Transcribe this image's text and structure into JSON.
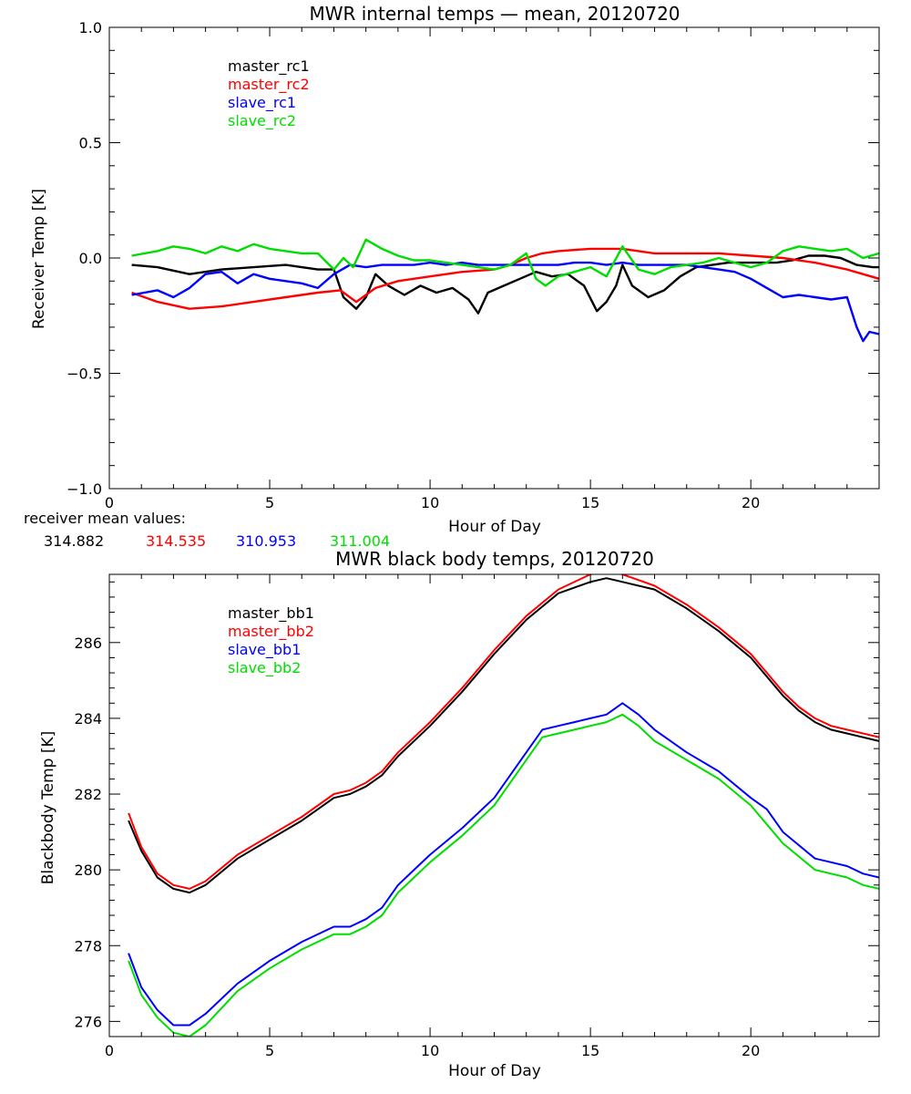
{
  "receiver_mean": {
    "label": "receiver mean values:",
    "values": [
      "314.882",
      "314.535",
      "310.953",
      "311.004"
    ],
    "colors": [
      "#000000",
      "#ff0000",
      "#0000ff",
      "#00dd00"
    ]
  },
  "chart_data": [
    {
      "type": "line",
      "title": "MWR internal temps — mean, 20120720",
      "xlabel": "Hour of Day",
      "ylabel": "Receiver Temp [K]",
      "xlim": [
        0,
        24
      ],
      "ylim": [
        -1.0,
        1.0
      ],
      "xticks": [
        0,
        5,
        10,
        15,
        20
      ],
      "xtick_labels": [
        "0",
        "5",
        "10",
        "15",
        "20"
      ],
      "yticks": [
        -1.0,
        -0.5,
        0.0,
        0.5,
        1.0
      ],
      "ytick_labels": [
        "−1.0",
        "−0.5",
        "0.0",
        "0.5",
        "1.0"
      ],
      "legend_position": "top-left",
      "grid": false,
      "series": [
        {
          "name": "master_rc1",
          "color": "#000000",
          "x": [
            0.7,
            1.5,
            2.5,
            3.5,
            4.5,
            5.5,
            6.5,
            7.0,
            7.3,
            7.7,
            8.0,
            8.3,
            8.7,
            9.2,
            9.7,
            10.2,
            10.7,
            11.2,
            11.5,
            11.8,
            12.3,
            12.8,
            13.3,
            13.8,
            14.3,
            14.8,
            15.2,
            15.5,
            15.8,
            16.0,
            16.3,
            16.8,
            17.3,
            17.8,
            18.3,
            18.8,
            19.3,
            19.8,
            20.3,
            20.8,
            21.3,
            21.8,
            22.3,
            22.8,
            23.3,
            23.8,
            24.0
          ],
          "y": [
            -0.03,
            -0.04,
            -0.07,
            -0.05,
            -0.04,
            -0.03,
            -0.05,
            -0.05,
            -0.17,
            -0.22,
            -0.17,
            -0.07,
            -0.12,
            -0.16,
            -0.12,
            -0.15,
            -0.13,
            -0.18,
            -0.24,
            -0.15,
            -0.12,
            -0.09,
            -0.06,
            -0.08,
            -0.07,
            -0.12,
            -0.23,
            -0.19,
            -0.12,
            -0.03,
            -0.12,
            -0.17,
            -0.14,
            -0.08,
            -0.04,
            -0.03,
            -0.02,
            -0.02,
            -0.02,
            -0.02,
            -0.01,
            0.01,
            0.01,
            0.0,
            -0.03,
            -0.04,
            -0.04
          ]
        },
        {
          "name": "master_rc2",
          "color": "#ff0000",
          "x": [
            0.7,
            1.5,
            2.5,
            3.5,
            4.5,
            5.5,
            6.5,
            7.2,
            7.7,
            8.0,
            8.3,
            9.0,
            10.0,
            11.0,
            12.0,
            12.5,
            13.0,
            13.5,
            14.0,
            15.0,
            16.0,
            17.0,
            18.0,
            19.0,
            20.0,
            21.0,
            22.0,
            23.0,
            23.5,
            24.0
          ],
          "y": [
            -0.15,
            -0.19,
            -0.22,
            -0.21,
            -0.19,
            -0.17,
            -0.15,
            -0.14,
            -0.19,
            -0.16,
            -0.13,
            -0.1,
            -0.08,
            -0.06,
            -0.05,
            -0.03,
            0.0,
            0.02,
            0.03,
            0.04,
            0.04,
            0.02,
            0.02,
            0.02,
            0.01,
            0.0,
            -0.02,
            -0.05,
            -0.07,
            -0.09
          ]
        },
        {
          "name": "slave_rc1",
          "color": "#0000ff",
          "x": [
            0.7,
            1.5,
            2.0,
            2.5,
            3.0,
            3.5,
            4.0,
            4.5,
            5.0,
            5.5,
            6.0,
            6.5,
            7.0,
            7.5,
            8.0,
            8.5,
            9.0,
            9.5,
            10.0,
            10.5,
            11.0,
            11.5,
            12.0,
            12.5,
            13.0,
            13.5,
            14.0,
            14.5,
            15.0,
            15.5,
            16.0,
            16.5,
            17.0,
            17.5,
            18.0,
            18.5,
            19.0,
            19.5,
            20.0,
            20.5,
            21.0,
            21.5,
            22.0,
            22.5,
            23.0,
            23.3,
            23.5,
            23.7,
            24.0
          ],
          "y": [
            -0.16,
            -0.14,
            -0.17,
            -0.13,
            -0.07,
            -0.06,
            -0.11,
            -0.07,
            -0.09,
            -0.1,
            -0.11,
            -0.13,
            -0.07,
            -0.03,
            -0.04,
            -0.03,
            -0.03,
            -0.03,
            -0.02,
            -0.03,
            -0.02,
            -0.03,
            -0.03,
            -0.03,
            -0.03,
            -0.03,
            -0.03,
            -0.02,
            -0.02,
            -0.03,
            -0.02,
            -0.03,
            -0.03,
            -0.03,
            -0.03,
            -0.04,
            -0.05,
            -0.06,
            -0.09,
            -0.13,
            -0.17,
            -0.16,
            -0.17,
            -0.18,
            -0.17,
            -0.3,
            -0.36,
            -0.32,
            -0.33
          ]
        },
        {
          "name": "slave_rc2",
          "color": "#00dd00",
          "x": [
            0.7,
            1.5,
            2.0,
            2.5,
            3.0,
            3.5,
            4.0,
            4.5,
            5.0,
            5.5,
            6.0,
            6.5,
            7.0,
            7.3,
            7.6,
            8.0,
            8.5,
            9.0,
            9.5,
            10.0,
            10.5,
            11.0,
            11.5,
            12.0,
            12.5,
            13.0,
            13.3,
            13.6,
            14.0,
            14.5,
            15.0,
            15.5,
            16.0,
            16.5,
            17.0,
            17.5,
            18.0,
            18.5,
            19.0,
            19.5,
            20.0,
            20.5,
            21.0,
            21.5,
            22.0,
            22.5,
            23.0,
            23.5,
            24.0
          ],
          "y": [
            0.01,
            0.03,
            0.05,
            0.04,
            0.02,
            0.05,
            0.03,
            0.06,
            0.04,
            0.03,
            0.02,
            0.02,
            -0.05,
            0.0,
            -0.04,
            0.08,
            0.04,
            0.01,
            -0.01,
            -0.01,
            -0.02,
            -0.03,
            -0.04,
            -0.05,
            -0.03,
            0.02,
            -0.09,
            -0.12,
            -0.08,
            -0.06,
            -0.04,
            -0.08,
            0.05,
            -0.05,
            -0.07,
            -0.04,
            -0.03,
            -0.02,
            0.0,
            -0.02,
            -0.04,
            -0.02,
            0.03,
            0.05,
            0.04,
            0.03,
            0.04,
            0.0,
            0.02
          ]
        }
      ]
    },
    {
      "type": "line",
      "title": "MWR black body temps, 20120720",
      "xlabel": "Hour of Day",
      "ylabel": "Blackbody Temp [K]",
      "xlim": [
        0,
        24
      ],
      "ylim": [
        275.6,
        287.8
      ],
      "xticks": [
        0,
        5,
        10,
        15,
        20
      ],
      "xtick_labels": [
        "0",
        "5",
        "10",
        "15",
        "20"
      ],
      "yticks": [
        276,
        278,
        280,
        282,
        284,
        286
      ],
      "ytick_labels": [
        "276",
        "278",
        "280",
        "282",
        "284",
        "286"
      ],
      "legend_position": "top-left",
      "grid": false,
      "series": [
        {
          "name": "master_bb1",
          "color": "#000000",
          "x": [
            0.6,
            1.0,
            1.5,
            2.0,
            2.5,
            3.0,
            4.0,
            5.0,
            6.0,
            7.0,
            7.5,
            8.0,
            8.5,
            9.0,
            10.0,
            11.0,
            12.0,
            13.0,
            14.0,
            15.0,
            15.5,
            16.0,
            17.0,
            18.0,
            19.0,
            20.0,
            20.5,
            21.0,
            21.5,
            22.0,
            22.5,
            23.0,
            24.0
          ],
          "y": [
            281.3,
            280.5,
            279.8,
            279.5,
            279.4,
            279.6,
            280.3,
            280.8,
            281.3,
            281.9,
            282.0,
            282.2,
            282.5,
            283.0,
            283.8,
            284.7,
            285.7,
            286.6,
            287.3,
            287.6,
            287.7,
            287.6,
            287.4,
            286.9,
            286.3,
            285.6,
            285.1,
            284.6,
            284.2,
            283.9,
            283.7,
            283.6,
            283.4
          ]
        },
        {
          "name": "master_bb2",
          "color": "#ff0000",
          "x": [
            0.6,
            1.0,
            1.5,
            2.0,
            2.5,
            3.0,
            4.0,
            5.0,
            6.0,
            7.0,
            7.5,
            8.0,
            8.5,
            9.0,
            10.0,
            11.0,
            12.0,
            13.0,
            14.0,
            15.0,
            15.5,
            16.0,
            17.0,
            18.0,
            19.0,
            20.0,
            20.5,
            21.0,
            21.5,
            22.0,
            22.5,
            23.0,
            24.0
          ],
          "y": [
            281.5,
            280.6,
            279.9,
            279.6,
            279.5,
            279.7,
            280.4,
            280.9,
            281.4,
            282.0,
            282.1,
            282.3,
            282.6,
            283.1,
            283.9,
            284.8,
            285.8,
            286.7,
            287.4,
            287.8,
            287.9,
            287.8,
            287.5,
            287.0,
            286.4,
            285.7,
            285.2,
            284.7,
            284.3,
            284.0,
            283.8,
            283.7,
            283.5
          ]
        },
        {
          "name": "slave_bb1",
          "color": "#0000ff",
          "x": [
            0.6,
            1.0,
            1.5,
            2.0,
            2.5,
            3.0,
            4.0,
            5.0,
            6.0,
            7.0,
            7.5,
            8.0,
            8.5,
            9.0,
            9.5,
            10.0,
            11.0,
            12.0,
            13.0,
            13.5,
            14.0,
            14.5,
            15.0,
            15.5,
            16.0,
            16.5,
            17.0,
            18.0,
            19.0,
            20.0,
            20.5,
            21.0,
            22.0,
            22.5,
            23.0,
            23.5,
            24.0
          ],
          "y": [
            277.8,
            276.9,
            276.3,
            275.9,
            275.9,
            276.2,
            277.0,
            277.6,
            278.1,
            278.5,
            278.5,
            278.7,
            279.0,
            279.6,
            280.0,
            280.4,
            281.1,
            281.9,
            283.1,
            283.7,
            283.8,
            283.9,
            284.0,
            284.1,
            284.4,
            284.1,
            283.7,
            283.1,
            282.6,
            281.9,
            281.6,
            281.0,
            280.3,
            280.2,
            280.1,
            279.9,
            279.8
          ]
        },
        {
          "name": "slave_bb2",
          "color": "#00dd00",
          "x": [
            0.6,
            1.0,
            1.5,
            2.0,
            2.5,
            3.0,
            4.0,
            5.0,
            6.0,
            7.0,
            7.5,
            8.0,
            8.5,
            9.0,
            9.5,
            10.0,
            11.0,
            12.0,
            13.0,
            13.5,
            14.0,
            14.5,
            15.0,
            15.5,
            16.0,
            16.5,
            17.0,
            18.0,
            19.0,
            20.0,
            20.5,
            21.0,
            22.0,
            22.5,
            23.0,
            23.5,
            24.0
          ],
          "y": [
            277.6,
            276.7,
            276.1,
            275.7,
            275.6,
            275.9,
            276.8,
            277.4,
            277.9,
            278.3,
            278.3,
            278.5,
            278.8,
            279.4,
            279.8,
            280.2,
            280.9,
            281.7,
            282.9,
            283.5,
            283.6,
            283.7,
            283.8,
            283.9,
            284.1,
            283.8,
            283.4,
            282.9,
            282.4,
            281.7,
            281.2,
            280.7,
            280.0,
            279.9,
            279.8,
            279.6,
            279.5
          ]
        }
      ]
    }
  ]
}
